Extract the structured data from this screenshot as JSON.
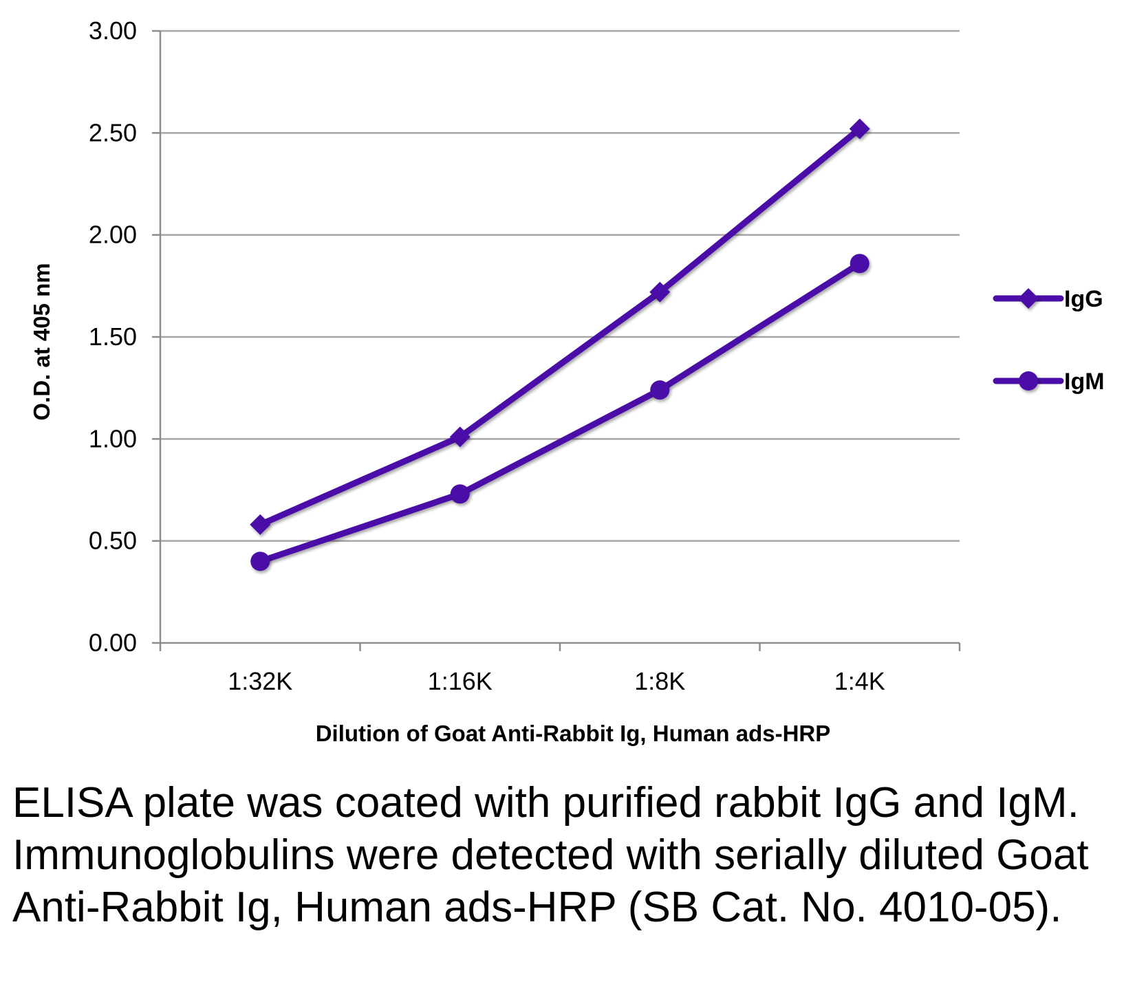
{
  "chart_data": {
    "type": "line",
    "title": "",
    "xlabel": "Dilution of Goat Anti-Rabbit Ig, Human ads-HRP",
    "ylabel": "O.D. at 405 nm",
    "categories": [
      "1:32K",
      "1:16K",
      "1:8K",
      "1:4K"
    ],
    "ylim": [
      0,
      3
    ],
    "yticks": [
      "0.00",
      "0.50",
      "1.00",
      "1.50",
      "2.00",
      "2.50",
      "3.00"
    ],
    "ytick_values": [
      0,
      0.5,
      1,
      1.5,
      2,
      2.5,
      3
    ],
    "grid": true,
    "legend_position": "right",
    "series": [
      {
        "name": "IgG",
        "marker": "diamond",
        "color": "#4B0FA8",
        "values": [
          0.58,
          1.01,
          1.72,
          2.52
        ]
      },
      {
        "name": "IgM",
        "marker": "circle",
        "color": "#4B0FA8",
        "values": [
          0.4,
          0.73,
          1.24,
          1.86
        ]
      }
    ]
  },
  "caption": "ELISA plate was coated with purified rabbit IgG and IgM.  Immunoglobulins were detected with serially diluted Goat Anti-Rabbit Ig, Human ads-HRP (SB Cat. No. 4010-05)."
}
